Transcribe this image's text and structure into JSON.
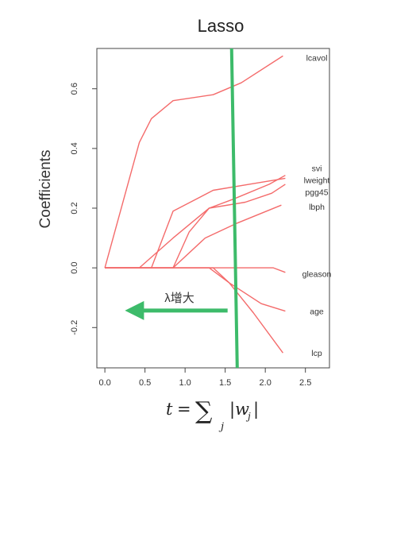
{
  "chart_data": {
    "type": "line",
    "title": "Lasso",
    "ylabel": "Coefficients",
    "xlabel_math": {
      "lhs": "t",
      "eq": "=",
      "sum": "∑",
      "sub": "j",
      "abs_open": "|",
      "w": "w",
      "w_sub": "j",
      "abs_close": "|"
    },
    "xlim": [
      -0.1,
      2.8
    ],
    "ylim": [
      -0.335,
      0.735
    ],
    "xticks": [
      0.0,
      0.5,
      1.0,
      1.5,
      2.0,
      2.5
    ],
    "xtick_labels": [
      "0.0",
      "0.5",
      "1.0",
      "1.5",
      "2.0",
      "2.5"
    ],
    "yticks": [
      -0.2,
      0.0,
      0.2,
      0.4,
      0.6
    ],
    "ytick_labels": [
      "-0.2",
      "0.0",
      "0.2",
      "0.4",
      "0.6"
    ],
    "series_color": "#f46b6b",
    "series": [
      {
        "name": "lcavol",
        "points": [
          [
            0.0,
            0.0
          ],
          [
            0.43,
            0.42
          ],
          [
            0.58,
            0.5
          ],
          [
            0.85,
            0.56
          ],
          [
            1.35,
            0.58
          ],
          [
            1.7,
            0.62
          ],
          [
            2.22,
            0.71
          ]
        ]
      },
      {
        "name": "svi",
        "points": [
          [
            0.0,
            0.0
          ],
          [
            0.85,
            0.0
          ],
          [
            1.05,
            0.12
          ],
          [
            1.3,
            0.2
          ],
          [
            1.6,
            0.23
          ],
          [
            2.05,
            0.28
          ],
          [
            2.25,
            0.31
          ]
        ]
      },
      {
        "name": "lweight",
        "points": [
          [
            0.0,
            0.0
          ],
          [
            0.58,
            0.0
          ],
          [
            0.85,
            0.19
          ],
          [
            1.35,
            0.26
          ],
          [
            1.8,
            0.28
          ],
          [
            2.25,
            0.3
          ]
        ]
      },
      {
        "name": "pgg45",
        "points": [
          [
            0.0,
            0.0
          ],
          [
            0.43,
            0.0
          ],
          [
            0.85,
            0.1
          ],
          [
            1.3,
            0.2
          ],
          [
            1.75,
            0.22
          ],
          [
            2.08,
            0.25
          ],
          [
            2.25,
            0.28
          ]
        ]
      },
      {
        "name": "lbph",
        "points": [
          [
            0.0,
            0.0
          ],
          [
            0.85,
            0.0
          ],
          [
            1.25,
            0.1
          ],
          [
            1.65,
            0.15
          ],
          [
            2.2,
            0.21
          ]
        ]
      },
      {
        "name": "gleason",
        "points": [
          [
            0.0,
            0.0
          ],
          [
            2.1,
            0.0
          ],
          [
            2.25,
            -0.015
          ]
        ]
      },
      {
        "name": "age",
        "points": [
          [
            0.0,
            0.0
          ],
          [
            1.3,
            0.0
          ],
          [
            1.55,
            -0.05
          ],
          [
            1.95,
            -0.12
          ],
          [
            2.25,
            -0.145
          ]
        ]
      },
      {
        "name": "lcp",
        "points": [
          [
            0.0,
            0.0
          ],
          [
            1.35,
            0.0
          ],
          [
            1.55,
            -0.05
          ],
          [
            1.85,
            -0.15
          ],
          [
            2.22,
            -0.285
          ]
        ]
      }
    ],
    "series_labels": [
      "lcavol",
      "svi",
      "lweight",
      "pgg45",
      "lbph",
      "gleason",
      "age",
      "lcp"
    ],
    "vline": {
      "color": "#3dbb6a",
      "from": [
        1.58,
        0.735
      ],
      "to": [
        1.65,
        -0.335
      ]
    },
    "arrow": {
      "label": "λ增大",
      "color": "#3dbb6a",
      "from": [
        1.53,
        -0.143
      ],
      "to": [
        0.25,
        -0.143
      ]
    }
  }
}
